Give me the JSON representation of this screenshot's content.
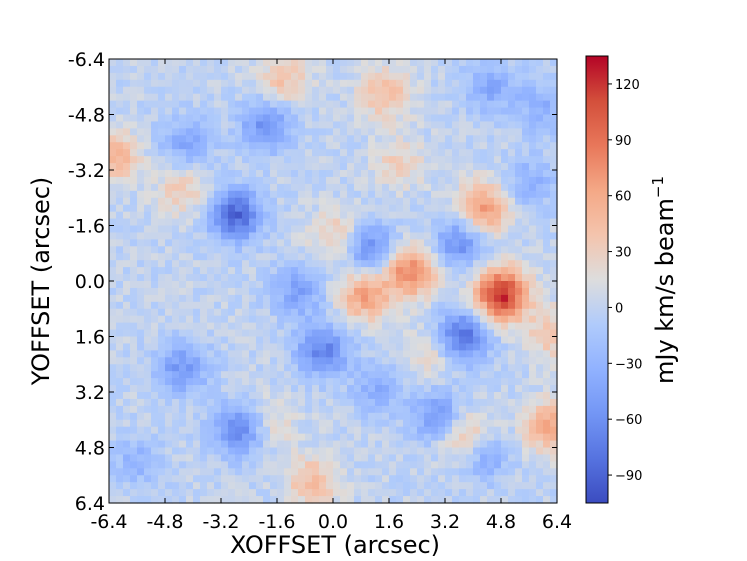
{
  "chart_data": {
    "type": "heatmap",
    "xlabel": "XOFFSET (arcsec)",
    "ylabel": "YOFFSET (arcsec)",
    "xlim": [
      -6.4,
      6.4
    ],
    "ylim": [
      -6.4,
      6.4
    ],
    "y_inverted": true,
    "x_ticks": [
      -6.4,
      -4.8,
      -3.2,
      -1.6,
      0.0,
      1.6,
      3.2,
      4.8,
      6.4
    ],
    "x_tick_labels": [
      "-6.4",
      "-4.8",
      "-3.2",
      "-1.6",
      "0.0",
      "1.6",
      "3.2",
      "4.8",
      "6.4"
    ],
    "y_ticks": [
      -6.4,
      -4.8,
      -3.2,
      -1.6,
      0.0,
      1.6,
      3.2,
      4.8,
      6.4
    ],
    "y_tick_labels": [
      "-6.4",
      "-4.8",
      "-3.2",
      "-1.6",
      "0.0",
      "1.6",
      "3.2",
      "4.8",
      "6.4"
    ],
    "grid": false,
    "colormap": "coolwarm",
    "colorbar": {
      "label": "mJy km/s beam",
      "label_exponent": "−1",
      "vmin": -105,
      "vmax": 135,
      "ticks": [
        -90,
        -60,
        -30,
        0,
        30,
        60,
        90,
        120
      ],
      "tick_labels": [
        "−90",
        "−60",
        "−30",
        "0",
        "30",
        "60",
        "90",
        "120"
      ],
      "position": "right"
    },
    "features": [
      {
        "x": 4.8,
        "y": 0.4,
        "value": 125
      },
      {
        "x": 2.2,
        "y": -0.3,
        "value": 85
      },
      {
        "x": 4.3,
        "y": -2.1,
        "value": 70
      },
      {
        "x": 0.9,
        "y": 0.4,
        "value": 65
      },
      {
        "x": -6.3,
        "y": -3.6,
        "value": 55
      },
      {
        "x": 1.5,
        "y": -5.4,
        "value": 45
      },
      {
        "x": -1.4,
        "y": -5.8,
        "value": 40
      },
      {
        "x": 3.8,
        "y": 4.5,
        "value": 55
      },
      {
        "x": 6.2,
        "y": 4.2,
        "value": 60
      },
      {
        "x": 6.3,
        "y": 1.5,
        "value": 40
      },
      {
        "x": -0.6,
        "y": 5.8,
        "value": 45
      },
      {
        "x": -4.3,
        "y": -2.6,
        "value": 35
      },
      {
        "x": 0.1,
        "y": -1.3,
        "value": 35
      },
      {
        "x": 1.9,
        "y": -3.4,
        "value": 30
      },
      {
        "x": -1.8,
        "y": 4.1,
        "value": 25
      },
      {
        "x": 2.8,
        "y": 2.1,
        "value": 30
      },
      {
        "x": -2.8,
        "y": -1.9,
        "value": -90
      },
      {
        "x": 3.7,
        "y": 1.6,
        "value": -85
      },
      {
        "x": -2.7,
        "y": 4.3,
        "value": -70
      },
      {
        "x": -0.3,
        "y": 2.0,
        "value": -70
      },
      {
        "x": 1.1,
        "y": -0.9,
        "value": -65
      },
      {
        "x": -1.9,
        "y": -4.5,
        "value": -60
      },
      {
        "x": -4.3,
        "y": 2.5,
        "value": -55
      },
      {
        "x": 3.6,
        "y": -1.1,
        "value": -60
      },
      {
        "x": 3.0,
        "y": 3.9,
        "value": -55
      },
      {
        "x": 4.3,
        "y": 5.0,
        "value": -45
      },
      {
        "x": -1.0,
        "y": 0.3,
        "value": -45
      },
      {
        "x": 4.5,
        "y": -5.6,
        "value": -40
      },
      {
        "x": -4.2,
        "y": -4.0,
        "value": -40
      },
      {
        "x": 5.6,
        "y": -2.8,
        "value": -35
      },
      {
        "x": 1.3,
        "y": 3.1,
        "value": -35
      },
      {
        "x": -5.6,
        "y": 5.2,
        "value": -30
      },
      {
        "x": 6.0,
        "y": -5.0,
        "value": -35
      }
    ]
  }
}
